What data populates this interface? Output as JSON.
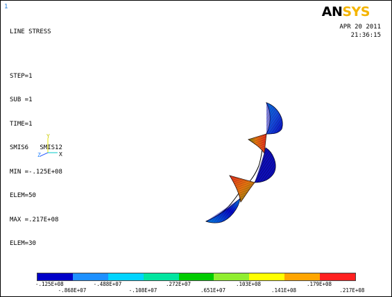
{
  "window_number": "1",
  "title": "LINE STRESS",
  "info": {
    "step": "STEP=1",
    "sub": "SUB =1",
    "time": "TIME=1",
    "items": "SMIS6   SMIS12",
    "min": "MIN =-.125E+08",
    "min_elem": "ELEM=50",
    "max": "MAX =.217E+08",
    "max_elem": "ELEM=30"
  },
  "logo": {
    "an": "AN",
    "sys": "SYS"
  },
  "date": "APR 20 2011",
  "time_of_day": "21:36:15",
  "triad": {
    "y": "Y",
    "z": "Z",
    "x": "X"
  },
  "legend": {
    "colors": [
      "#0000c8",
      "#1e90ff",
      "#00d4ff",
      "#00e5a0",
      "#00cc00",
      "#90ee30",
      "#ffff00",
      "#ffa500",
      "#ff2020"
    ],
    "labels_top": [
      "-.125E+08",
      "-.488E+07",
      ".272E+07",
      ".103E+08",
      ".179E+08"
    ],
    "labels_bottom": [
      "-.868E+07",
      "-.108E+07",
      ".651E+07",
      ".141E+08",
      ".217E+08"
    ]
  }
}
